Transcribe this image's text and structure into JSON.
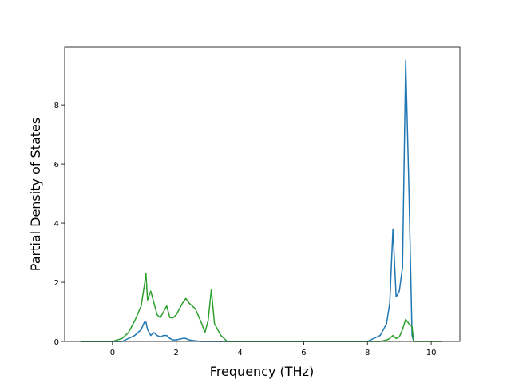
{
  "chart_data": {
    "type": "line",
    "xlabel": "Frequency (THz)",
    "ylabel": "Partial Density of States",
    "x": [
      -1.0,
      0.0,
      0.3,
      0.5,
      0.7,
      0.9,
      1.0,
      1.05,
      1.1,
      1.2,
      1.3,
      1.4,
      1.5,
      1.6,
      1.7,
      1.8,
      1.9,
      2.0,
      2.2,
      2.3,
      2.4,
      2.6,
      2.8,
      2.9,
      3.0,
      3.1,
      3.2,
      3.4,
      3.6,
      4.0,
      8.0,
      8.4,
      8.6,
      8.7,
      8.8,
      8.9,
      9.0,
      9.1,
      9.2,
      9.3,
      9.4,
      9.45,
      10.35
    ],
    "series": [
      {
        "color": "#1f77b4",
        "values": [
          0,
          0,
          0,
          0.1,
          0.2,
          0.4,
          0.65,
          0.65,
          0.4,
          0.2,
          0.3,
          0.2,
          0.15,
          0.2,
          0.2,
          0.1,
          0.05,
          0.05,
          0.1,
          0.1,
          0.05,
          0.02,
          0,
          0,
          0,
          0,
          0,
          0,
          0,
          0,
          0,
          0.2,
          0.6,
          1.3,
          3.8,
          1.5,
          1.7,
          2.5,
          9.5,
          5.2,
          0.2,
          0,
          null
        ]
      },
      {
        "color": "#2ca02c",
        "values": [
          0,
          0,
          0.1,
          0.3,
          0.7,
          1.2,
          1.9,
          2.3,
          1.4,
          1.7,
          1.3,
          0.9,
          0.8,
          1.0,
          1.2,
          0.8,
          0.8,
          0.9,
          1.3,
          1.45,
          1.3,
          1.1,
          0.6,
          0.3,
          0.7,
          1.75,
          0.6,
          0.2,
          0,
          0,
          0,
          0,
          0.05,
          0.1,
          0.2,
          0.1,
          0.15,
          0.4,
          0.75,
          0.6,
          0.5,
          0,
          0
        ]
      }
    ],
    "xlim": [
      -1.5,
      10.9
    ],
    "xticks": [
      0,
      2,
      4,
      6,
      8,
      10
    ],
    "ylim": [
      0,
      9.95
    ],
    "yticks": [
      0,
      2,
      4,
      6,
      8
    ]
  }
}
